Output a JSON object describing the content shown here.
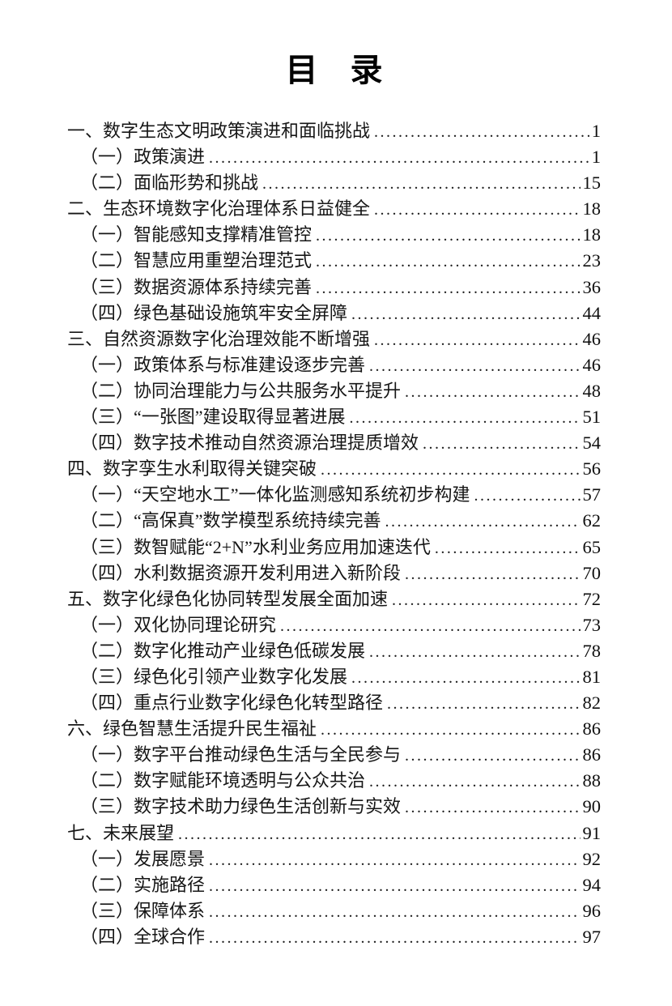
{
  "page": {
    "title": "目　录",
    "background_color": "#ffffff",
    "text_color": "#121212"
  },
  "toc": {
    "entries": [
      {
        "level": 1,
        "label": "一、数字生态文明政策演进和面临挑战",
        "page": "1"
      },
      {
        "level": 2,
        "label": "（一）政策演进",
        "page": "1"
      },
      {
        "level": 2,
        "label": "（二）面临形势和挑战",
        "page": "15"
      },
      {
        "level": 1,
        "label": "二、生态环境数字化治理体系日益健全",
        "page": "18"
      },
      {
        "level": 2,
        "label": "（一）智能感知支撑精准管控",
        "page": "18"
      },
      {
        "level": 2,
        "label": "（二）智慧应用重塑治理范式",
        "page": "23"
      },
      {
        "level": 2,
        "label": "（三）数据资源体系持续完善",
        "page": "36"
      },
      {
        "level": 2,
        "label": "（四）绿色基础设施筑牢安全屏障",
        "page": "44"
      },
      {
        "level": 1,
        "label": "三、自然资源数字化治理效能不断增强",
        "page": "46"
      },
      {
        "level": 2,
        "label": "（一）政策体系与标准建设逐步完善",
        "page": "46"
      },
      {
        "level": 2,
        "label": "（二）协同治理能力与公共服务水平提升",
        "page": "48"
      },
      {
        "level": 2,
        "label": "（三）“一张图”建设取得显著进展",
        "page": "51"
      },
      {
        "level": 2,
        "label": "（四）数字技术推动自然资源治理提质增效",
        "page": "54"
      },
      {
        "level": 1,
        "label": "四、数字孪生水利取得关键突破",
        "page": "56"
      },
      {
        "level": 2,
        "label": "（一）“天空地水工”一体化监测感知系统初步构建",
        "page": "57"
      },
      {
        "level": 2,
        "label": "（二）“高保真”数学模型系统持续完善",
        "page": "62"
      },
      {
        "level": 2,
        "label": "（三）数智赋能“2+N”水利业务应用加速迭代",
        "page": "65"
      },
      {
        "level": 2,
        "label": "（四）水利数据资源开发利用进入新阶段",
        "page": "70"
      },
      {
        "level": 1,
        "label": "五、数字化绿色化协同转型发展全面加速",
        "page": "72"
      },
      {
        "level": 2,
        "label": "（一）双化协同理论研究",
        "page": "73"
      },
      {
        "level": 2,
        "label": "（二）数字化推动产业绿色低碳发展",
        "page": "78"
      },
      {
        "level": 2,
        "label": "（三）绿色化引领产业数字化发展",
        "page": "81"
      },
      {
        "level": 2,
        "label": "（四）重点行业数字化绿色化转型路径",
        "page": "82"
      },
      {
        "level": 1,
        "label": "六、绿色智慧生活提升民生福祉",
        "page": "86"
      },
      {
        "level": 2,
        "label": "（一）数字平台推动绿色生活与全民参与",
        "page": "86"
      },
      {
        "level": 2,
        "label": "（二）数字赋能环境透明与公众共治",
        "page": "88"
      },
      {
        "level": 2,
        "label": "（三）数字技术助力绿色生活创新与实效",
        "page": "90"
      },
      {
        "level": 1,
        "label": "七、未来展望",
        "page": "91"
      },
      {
        "level": 2,
        "label": "（一）发展愿景",
        "page": "92"
      },
      {
        "level": 2,
        "label": "（二）实施路径",
        "page": "94"
      },
      {
        "level": 2,
        "label": "（三）保障体系",
        "page": "96"
      },
      {
        "level": 2,
        "label": "（四）全球合作",
        "page": "97"
      }
    ]
  }
}
